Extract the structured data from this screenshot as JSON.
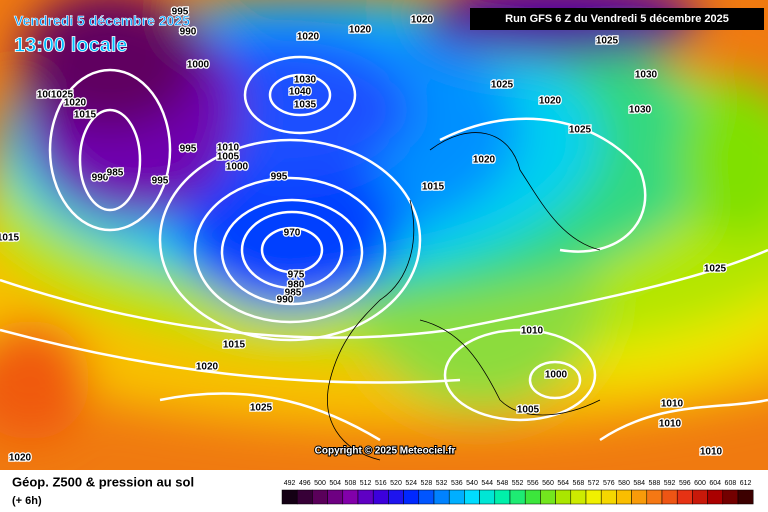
{
  "header": {
    "date": "Vendredi 5 décembre 2025",
    "time": "13:00 locale",
    "run": "Run GFS 6 Z du Vendredi 5 décembre 2025"
  },
  "map": {
    "isobar_labels": [
      995,
      990,
      1000,
      1005,
      1025,
      1020,
      1015,
      990,
      985,
      995,
      995,
      1010,
      1005,
      1000,
      995,
      970,
      975,
      980,
      985,
      990,
      1030,
      1040,
      1035,
      1020,
      1020,
      1020,
      1025,
      1025,
      1020,
      1030,
      1030,
      1025,
      1020,
      1015,
      1015,
      1025,
      1010,
      1000,
      1005,
      1015,
      1020,
      1025,
      1020,
      1010,
      1010,
      1010
    ]
  },
  "copyright": "Copyright © 2025 Meteociel.fr",
  "legend": {
    "title": "Géop. Z500 & pression au sol",
    "step": "(+ 6h)",
    "scale": [
      492,
      496,
      500,
      504,
      508,
      512,
      516,
      520,
      524,
      528,
      532,
      536,
      540,
      544,
      548,
      552,
      556,
      560,
      564,
      568,
      572,
      576,
      580,
      584,
      588,
      592,
      596,
      600,
      604,
      608,
      612
    ]
  }
}
